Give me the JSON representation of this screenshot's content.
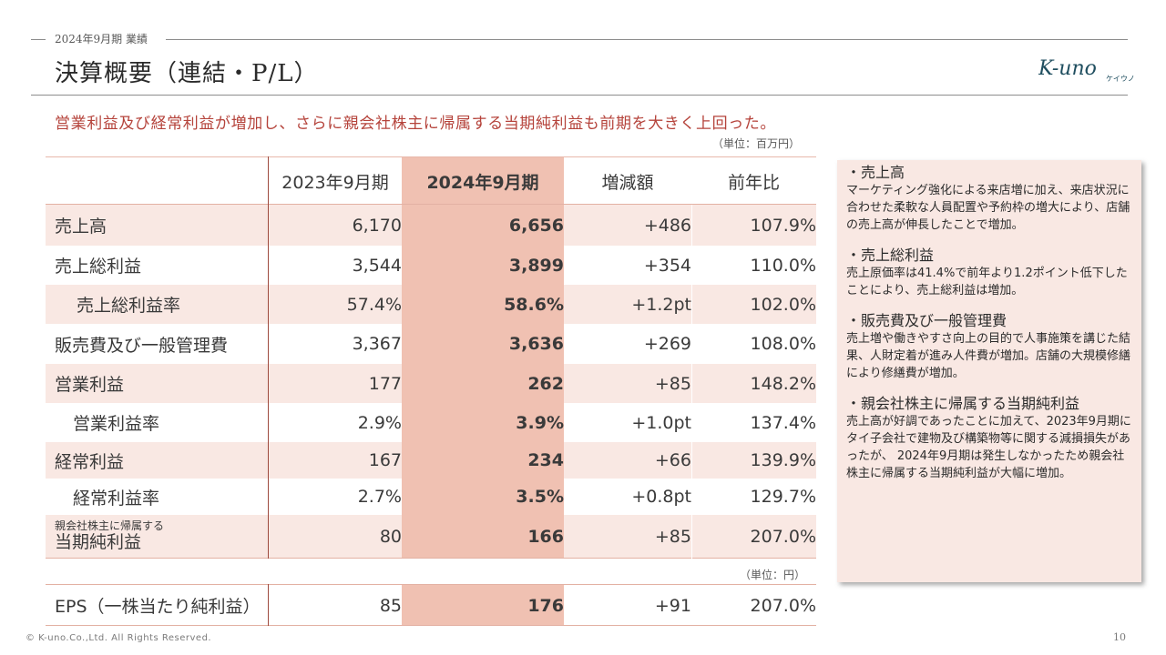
{
  "header": {
    "section": "2024年9月期 業績",
    "title": "決算概要（連結・P/L）",
    "logo_text": "K-uno",
    "logo_kana": "ケイウノ"
  },
  "headline": "営業利益及び経常利益が増加し、さらに親会社株主に帰属する当期純利益も前期を大きく上回った。",
  "unit_million": "（単位：百万円）",
  "unit_yen": "（単位：円）",
  "table": {
    "columns": [
      "",
      "2023年9月期",
      "2024年9月期",
      "増減額",
      "前年比"
    ],
    "rows": [
      {
        "label": "売上高",
        "prev": "6,170",
        "cur": "6,656",
        "diff": "+486",
        "ratio": "107.9%"
      },
      {
        "label": "売上総利益",
        "prev": "3,544",
        "cur": "3,899",
        "diff": "+354",
        "ratio": "110.0%"
      },
      {
        "label": "売上総利益率",
        "prev": "57.4%",
        "cur": "58.6%",
        "diff": "+1.2pt",
        "ratio": "102.0%"
      },
      {
        "label": "販売費及び一般管理費",
        "prev": "3,367",
        "cur": "3,636",
        "diff": "+269",
        "ratio": "108.0%"
      },
      {
        "label": "営業利益",
        "prev": "177",
        "cur": "262",
        "diff": "+85",
        "ratio": "148.2%"
      },
      {
        "label": "営業利益率",
        "prev": "2.9%",
        "cur": "3.9%",
        "diff": "+1.0pt",
        "ratio": "137.4%"
      },
      {
        "label": "経常利益",
        "prev": "167",
        "cur": "234",
        "diff": "+66",
        "ratio": "139.9%"
      },
      {
        "label": "経常利益率",
        "prev": "2.7%",
        "cur": "3.5%",
        "diff": "+0.8pt",
        "ratio": "129.7%"
      },
      {
        "label_small": "親会社株主に帰属する",
        "label": "当期純利益",
        "prev": "80",
        "cur": "166",
        "diff": "+85",
        "ratio": "207.0%"
      }
    ],
    "eps": {
      "label": "EPS（一株当たり純利益）",
      "prev": "85",
      "cur": "176",
      "diff": "+91",
      "ratio": "207.0%"
    }
  },
  "notes": [
    {
      "title": "・売上高",
      "body": "マーケティング強化による来店増に加え、来店状況に合わせた柔軟な人員配置や予約枠の増大により、店舗の売上高が伸長したことで増加。"
    },
    {
      "title": "・売上総利益",
      "body": "売上原価率は41.4%で前年より1.2ポイント低下したことにより、売上総利益は増加。"
    },
    {
      "title": "・販売費及び一般管理費",
      "body": "売上増や働きやすさ向上の目的で人事施策を講じた結果、人財定着が進み人件費が増加。店舗の大規模修繕により修繕費が増加。"
    },
    {
      "title": "・親会社株主に帰属する当期純利益",
      "body": "売上高が好調であったことに加えて、2023年9月期にタイ子会社で建物及び構築物等に関する減損損失があったが、 2024年9月期は発生しなかったため親会社株主に帰属する当期純利益が大幅に増加。"
    }
  ],
  "footer": {
    "copyright": "© K-uno.Co.,Ltd. All Rights Reserved.",
    "page": "10"
  }
}
